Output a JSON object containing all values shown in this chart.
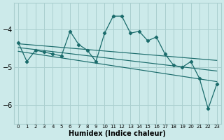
{
  "xlabel": "Humidex (Indice chaleur)",
  "bg_color": "#cceaea",
  "grid_color": "#aacfcf",
  "line_color": "#1a6b6b",
  "xlim": [
    -0.5,
    23.5
  ],
  "ylim": [
    -6.5,
    -3.3
  ],
  "yticks": [
    -6,
    -5,
    -4
  ],
  "xticks": [
    0,
    1,
    2,
    3,
    4,
    5,
    6,
    7,
    8,
    9,
    10,
    11,
    12,
    13,
    14,
    15,
    16,
    17,
    18,
    19,
    20,
    21,
    22,
    23
  ],
  "series1": [
    [
      0,
      -4.35
    ],
    [
      1,
      -4.85
    ],
    [
      2,
      -4.55
    ],
    [
      3,
      -4.6
    ],
    [
      4,
      -4.65
    ],
    [
      5,
      -4.7
    ],
    [
      6,
      -4.05
    ],
    [
      7,
      -4.4
    ],
    [
      8,
      -4.55
    ],
    [
      9,
      -4.85
    ],
    [
      10,
      -4.1
    ],
    [
      11,
      -3.65
    ],
    [
      12,
      -3.65
    ],
    [
      13,
      -4.1
    ],
    [
      14,
      -4.05
    ],
    [
      15,
      -4.3
    ],
    [
      16,
      -4.2
    ],
    [
      17,
      -4.65
    ],
    [
      18,
      -4.95
    ],
    [
      19,
      -5.0
    ],
    [
      20,
      -4.85
    ],
    [
      21,
      -5.3
    ],
    [
      22,
      -6.1
    ],
    [
      23,
      -5.45
    ]
  ],
  "trendline1": {
    "x": [
      0,
      23
    ],
    "y": [
      -4.38,
      -4.82
    ]
  },
  "trendline2": {
    "x": [
      0,
      23
    ],
    "y": [
      -4.48,
      -5.1
    ]
  },
  "trendline3": {
    "x": [
      0,
      23
    ],
    "y": [
      -4.58,
      -5.38
    ]
  }
}
